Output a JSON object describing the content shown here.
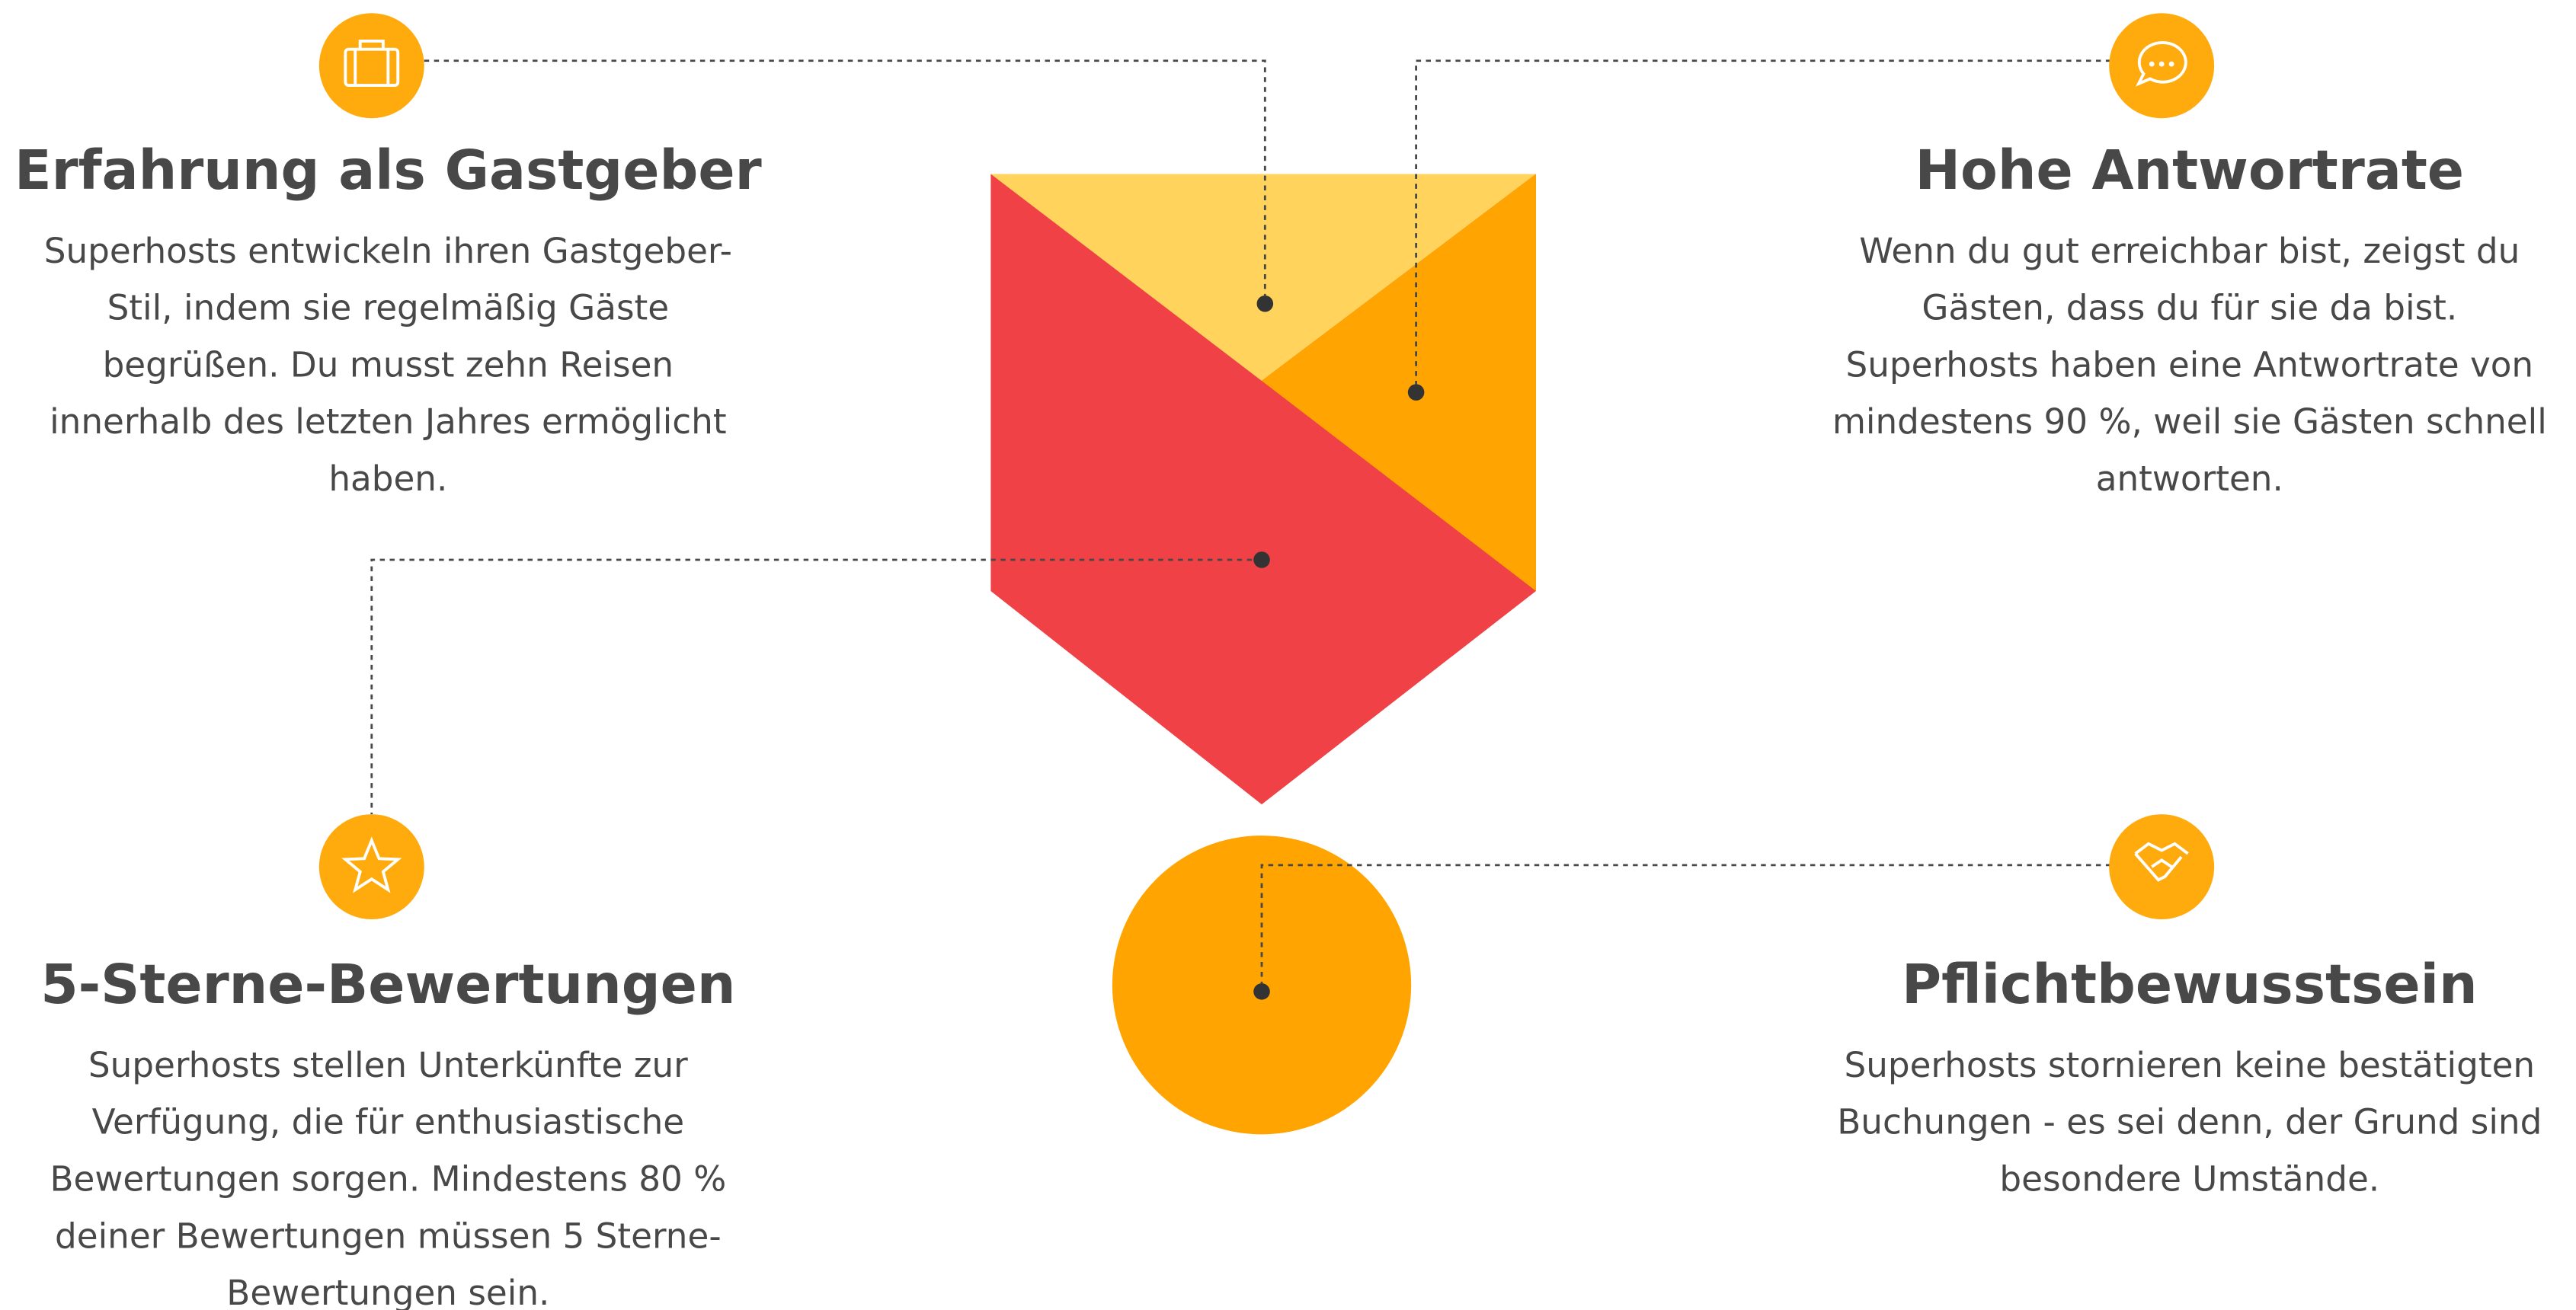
{
  "features": [
    {
      "title": "Erfahrung als Gastgeber",
      "lines": [
        "Superhosts entwickeln ihren Gastgeber-",
        "Stil, indem sie regelmäßig Gäste",
        "begrüßen. Du musst zehn Reisen",
        "innerhalb des letzten Jahres ermöglicht",
        "haben."
      ]
    },
    {
      "title": "Hohe Antwortrate",
      "lines": [
        "Wenn du gut erreichbar bist, zeigst du",
        "Gästen, dass du für sie da bist.",
        "Superhosts haben eine Antwortrate von",
        "mindestens 90 %, weil sie Gästen schnell",
        "antworten."
      ]
    },
    {
      "title": "5-Sterne-Bewertungen",
      "lines": [
        "Superhosts stellen Unterkünfte zur",
        "Verfügung, die für enthusiastische",
        "Bewertungen sorgen. Mindestens 80 %",
        "deiner Bewertungen müssen 5 Sterne-",
        "Bewertungen sein."
      ]
    },
    {
      "title": "Pflichtbewusstsein",
      "lines": [
        "Superhosts stornieren keine bestätigten",
        "Buchungen - es sei denn, der Grund sind",
        "besondere Umstände."
      ]
    }
  ]
}
